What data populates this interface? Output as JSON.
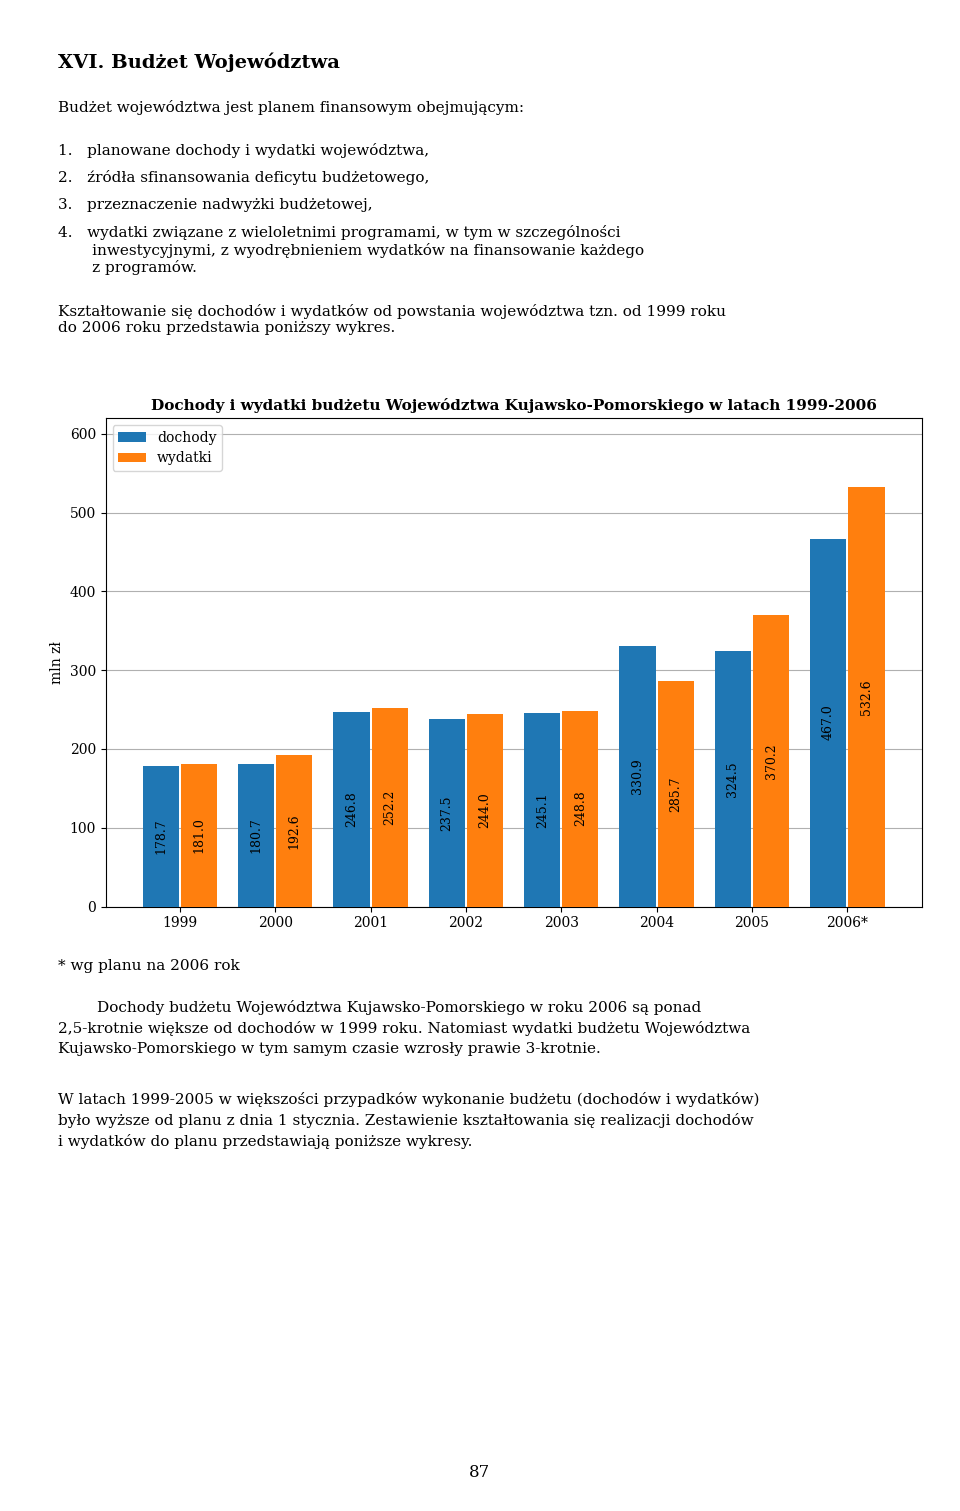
{
  "chart_data": {
    "type": "bar",
    "title": "Dochody i wydatki budżetu Województwa Kujawsko-Pomorskiego w latach 1999-2006",
    "ylabel": "mln zł",
    "categories": [
      "1999",
      "2000",
      "2001",
      "2002",
      "2003",
      "2004",
      "2005",
      "2006*"
    ],
    "series": [
      {
        "name": "dochody",
        "values": [
          178.7,
          180.7,
          246.8,
          237.5,
          245.1,
          330.9,
          324.5,
          467.0
        ]
      },
      {
        "name": "wydatki",
        "values": [
          181.0,
          192.6,
          252.2,
          244.0,
          248.8,
          285.7,
          370.2,
          532.6
        ]
      }
    ],
    "ylim": [
      0,
      620
    ],
    "yticks": [
      0,
      100,
      200,
      300,
      400,
      500,
      600
    ],
    "grid": true,
    "legend": "upper left",
    "data_labels": true
  },
  "text_before": [
    "XVI. Budżet Województwa",
    "Budżet województwa jest planem finansowym obejmującym:",
    "1.   planowane dochody i wydatki województwa,",
    "2.   źródła sfinansowania deficytu budżetowego,",
    "3.   przeznaczenie nadwyżki budżetowej,",
    "4.   wydatki związane z wieloletnimi programami, w tym w szczególności\n       inwestycyjnymi, z wyodrębnieniem wydatków na finansowanie każdego\n       z programów.",
    "Kształtowanie się dochodów i wydatków od powstania województwa tzn. od 1999 roku\ndo 2006 roku przedstawia poniższy wykres."
  ],
  "text_after": [
    "* wg planu na 2006 rok",
    "        Dochody budżetu Województwa Kujawsko-Pomorskiego w roku 2006 są ponad\n2,5-krotnie większe od dochodów w 1999 roku. Natomiast wydatki budżetu Województwa\nKujawsko-Pomorskiego w tym samym czasie wzrosły prawie 3-krotnie.",
    "W latach 1999-2005 w większości przypadków wykonanie budżetu (dochodów i wydatków)\nbyło wyższe od planu z dnia 1 stycznia. Zestawienie kształtowania się realizacji dochodów\ni wydatków do planu przedstawiają poniższe wykresy."
  ],
  "page_number": "87"
}
